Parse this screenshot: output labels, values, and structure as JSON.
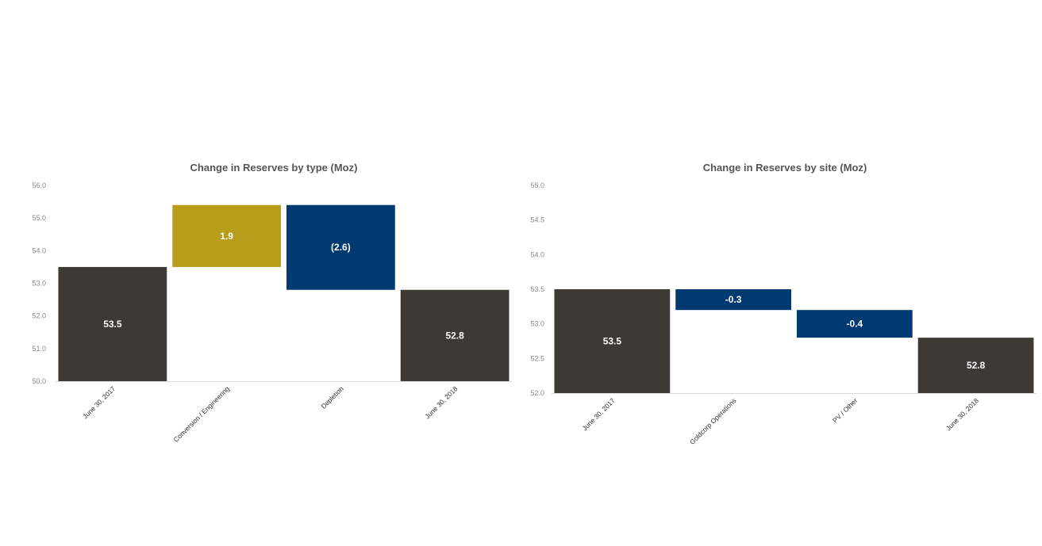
{
  "chart_data": [
    {
      "type": "bar",
      "subtype": "waterfall",
      "title": "Change in Reserves by type (Moz)",
      "categories": [
        "June 30, 2017",
        "Conversion / Engineering",
        "Depletion",
        "June 30, 2018"
      ],
      "bars": [
        {
          "start": 50.0,
          "end": 53.5,
          "label": "53.5",
          "kind": "total"
        },
        {
          "start": 53.5,
          "end": 55.4,
          "label": "1.9",
          "kind": "increase"
        },
        {
          "start": 55.4,
          "end": 52.8,
          "label": "(2.6)",
          "kind": "decrease"
        },
        {
          "start": 50.0,
          "end": 52.8,
          "label": "52.8",
          "kind": "total"
        }
      ],
      "ylim": [
        50.0,
        56.0
      ],
      "yticks": [
        "50.0",
        "51.0",
        "52.0",
        "53.0",
        "54.0",
        "55.0",
        "56.0"
      ],
      "tick_step": 1.0,
      "grid": false,
      "legend": "none",
      "colors": {
        "total": "#3d3a35",
        "increase": "#b89d1a",
        "decrease": "#003a70"
      }
    },
    {
      "type": "bar",
      "subtype": "waterfall",
      "title": "Change in Reserves by site (Moz)",
      "categories": [
        "June 30, 2017",
        "Goldcorp Operations",
        "PV / Other",
        "June 30, 2018"
      ],
      "bars": [
        {
          "start": 52.0,
          "end": 53.5,
          "label": "53.5",
          "kind": "total"
        },
        {
          "start": 53.5,
          "end": 53.2,
          "label": "-0.3",
          "kind": "decrease"
        },
        {
          "start": 53.2,
          "end": 52.8,
          "label": "-0.4",
          "kind": "decrease"
        },
        {
          "start": 52.0,
          "end": 52.8,
          "label": "52.8",
          "kind": "total"
        }
      ],
      "ylim": [
        52.0,
        55.0
      ],
      "yticks": [
        "52.0",
        "52.5",
        "53.0",
        "53.5",
        "54.0",
        "54.5",
        "55.0"
      ],
      "tick_step": 0.5,
      "grid": false,
      "legend": "none",
      "colors": {
        "total": "#3d3a35",
        "increase": "#b89d1a",
        "decrease": "#003a70"
      }
    }
  ]
}
